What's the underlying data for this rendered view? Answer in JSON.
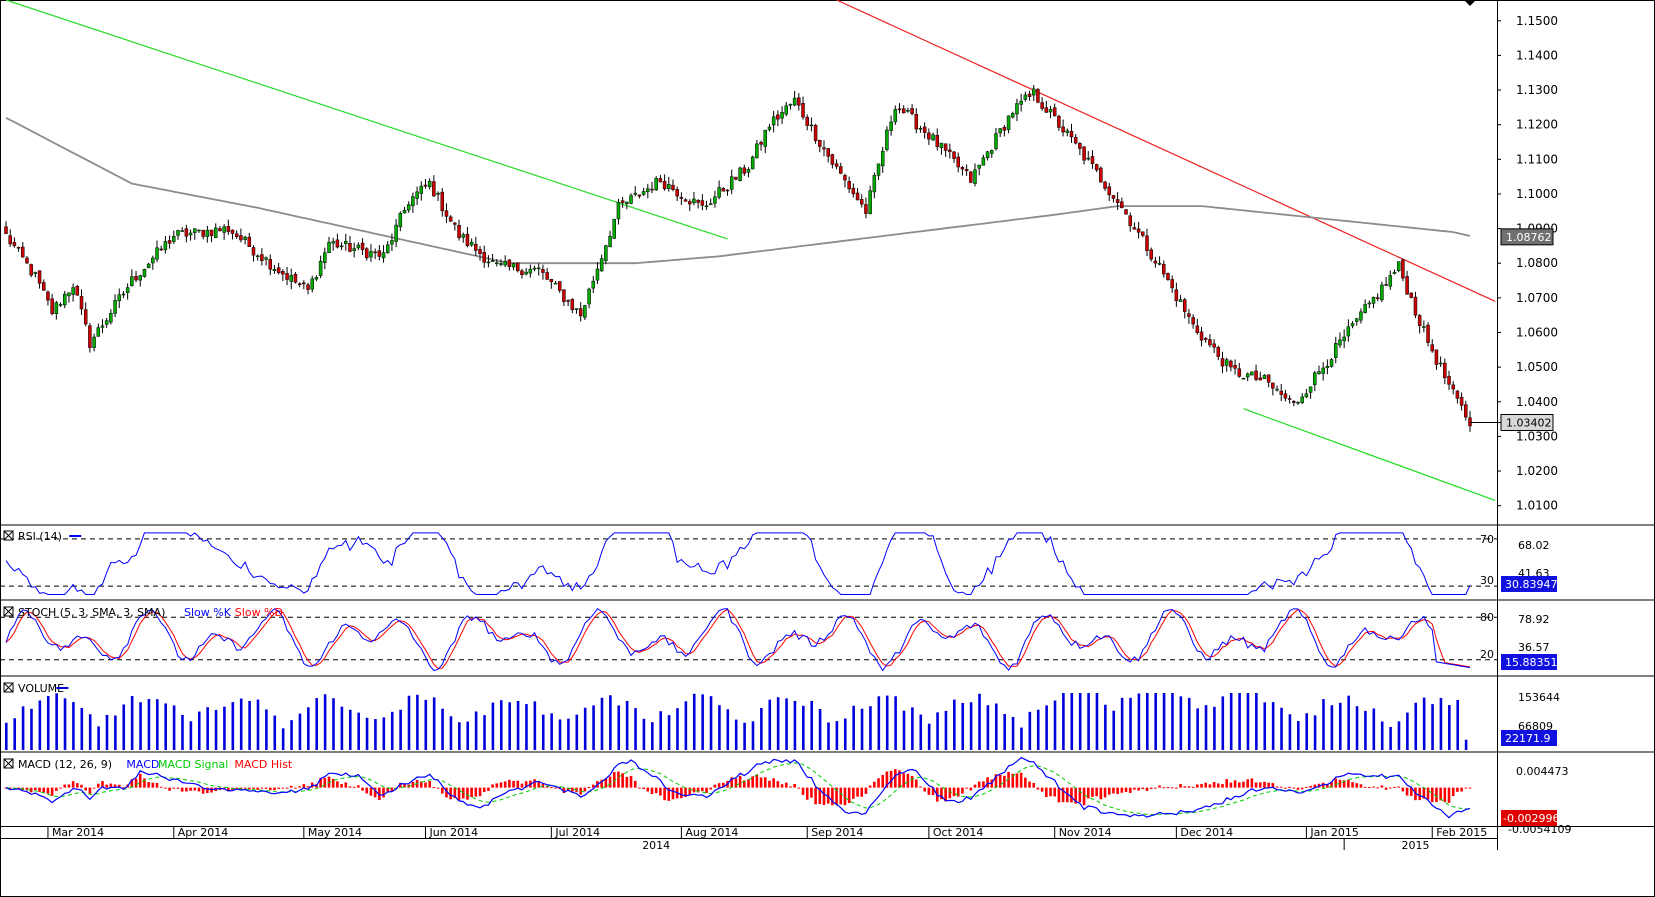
{
  "chart_data": {
    "type": "candlestick",
    "instrument_panels": [
      "price",
      "RSI",
      "STOCH",
      "VOLUME",
      "MACD"
    ],
    "price": {
      "ylim": [
        1.005,
        1.156
      ],
      "ticks": [
        "1.1500",
        "1.1400",
        "1.1300",
        "1.1200",
        "1.1100",
        "1.1000",
        "1.0900",
        "1.0800",
        "1.0700",
        "1.0600",
        "1.0500",
        "1.0400",
        "1.0300",
        "1.0200",
        "1.0100"
      ],
      "current_label": "1.03402",
      "sma_label": "1.08762",
      "channel_green_upper": [
        [
          0,
          1.156
        ],
        [
          172,
          1.087
        ]
      ],
      "channel_green_lower": [
        [
          295,
          1.038
        ],
        [
          355,
          1.0115
        ]
      ],
      "channel_red": [
        [
          198,
          1.156
        ],
        [
          355,
          1.069
        ]
      ],
      "sma_anchors": [
        [
          0,
          1.122
        ],
        [
          30,
          1.103
        ],
        [
          60,
          1.096
        ],
        [
          90,
          1.088
        ],
        [
          120,
          1.08
        ],
        [
          150,
          1.08
        ],
        [
          170,
          1.082
        ],
        [
          190,
          1.085
        ],
        [
          210,
          1.088
        ],
        [
          230,
          1.091
        ],
        [
          250,
          1.094
        ],
        [
          265,
          1.0965
        ],
        [
          285,
          1.0965
        ],
        [
          305,
          1.094
        ],
        [
          325,
          1.0915
        ],
        [
          345,
          1.089
        ],
        [
          350,
          1.0876
        ]
      ],
      "close_anchors": [
        [
          0,
          1.088
        ],
        [
          7,
          1.076
        ],
        [
          11,
          1.066
        ],
        [
          16,
          1.074
        ],
        [
          20,
          1.057
        ],
        [
          30,
          1.075
        ],
        [
          40,
          1.088
        ],
        [
          53,
          1.09
        ],
        [
          65,
          1.078
        ],
        [
          72,
          1.072
        ],
        [
          77,
          1.086
        ],
        [
          90,
          1.082
        ],
        [
          96,
          1.098
        ],
        [
          101,
          1.103
        ],
        [
          108,
          1.088
        ],
        [
          117,
          1.079
        ],
        [
          127,
          1.078
        ],
        [
          137,
          1.065
        ],
        [
          146,
          1.096
        ],
        [
          156,
          1.104
        ],
        [
          166,
          1.096
        ],
        [
          177,
          1.108
        ],
        [
          182,
          1.12
        ],
        [
          188,
          1.127
        ],
        [
          197,
          1.109
        ],
        [
          205,
          1.095
        ],
        [
          212,
          1.126
        ],
        [
          220,
          1.117
        ],
        [
          230,
          1.104
        ],
        [
          240,
          1.124
        ],
        [
          245,
          1.129
        ],
        [
          255,
          1.114
        ],
        [
          265,
          1.098
        ],
        [
          275,
          1.079
        ],
        [
          283,
          1.062
        ],
        [
          292,
          1.049
        ],
        [
          300,
          1.046
        ],
        [
          307,
          1.039
        ],
        [
          315,
          1.052
        ],
        [
          325,
          1.068
        ],
        [
          332,
          1.079
        ],
        [
          338,
          1.06
        ],
        [
          345,
          1.042
        ],
        [
          349,
          1.034
        ]
      ]
    },
    "rsi": {
      "label": "RSI (14)",
      "levels": [
        "70",
        "30"
      ],
      "ylim": [
        20,
        80
      ],
      "readout": "30.83947",
      "scale": [
        "68.02",
        "41.63"
      ],
      "color": "#0000ff"
    },
    "stoch": {
      "label_parts": [
        "STOCH (5, 3, SMA, 3, SMA)",
        "Slow %K",
        "Slow %D"
      ],
      "levels": [
        "80",
        "20"
      ],
      "readout": "15.88351",
      "scale": [
        "78.92",
        "36.57"
      ],
      "k_color": "#0000ff",
      "d_color": "#ff0000"
    },
    "volume": {
      "label": "VOLUME",
      "readout": "22171.9",
      "scale": [
        "153644",
        "66809"
      ],
      "color": "#0000dd"
    },
    "macd": {
      "label_parts": [
        "MACD (12, 26, 9)",
        "MACD",
        "MACD Signal",
        "MACD Hist"
      ],
      "readout": "-0.0029963",
      "scale": [
        "0.004473",
        "-0.0054109"
      ],
      "macd_color": "#0000ff",
      "signal_color": "#00cc00",
      "hist_color": "#ff0000"
    },
    "x_axis": {
      "months": [
        {
          "label": "Mar 2014",
          "bar": 10
        },
        {
          "label": "Apr 2014",
          "bar": 40
        },
        {
          "label": "May 2014",
          "bar": 71
        },
        {
          "label": "Jun 2014",
          "bar": 100
        },
        {
          "label": "Jul 2014",
          "bar": 130
        },
        {
          "label": "Aug 2014",
          "bar": 161
        },
        {
          "label": "Sep 2014",
          "bar": 191
        },
        {
          "label": "Oct 2014",
          "bar": 220
        },
        {
          "label": "Nov 2014",
          "bar": 250
        },
        {
          "label": "Dec 2014",
          "bar": 279
        },
        {
          "label": "Jan 2015",
          "bar": 310
        },
        {
          "label": "Feb 2015",
          "bar": 340
        }
      ],
      "years": [
        {
          "label": "2014",
          "bar": 155
        },
        {
          "label": "2015",
          "bar": 336
        }
      ],
      "total_bars": 350
    },
    "colors": {
      "bull": "#00aa00",
      "bear": "#cc0000",
      "sma": "#8c8c8c",
      "channel_green": "#22dd22",
      "channel_red": "#ee2222",
      "label_box": "#707070",
      "readout_box": "#1010e0"
    }
  }
}
